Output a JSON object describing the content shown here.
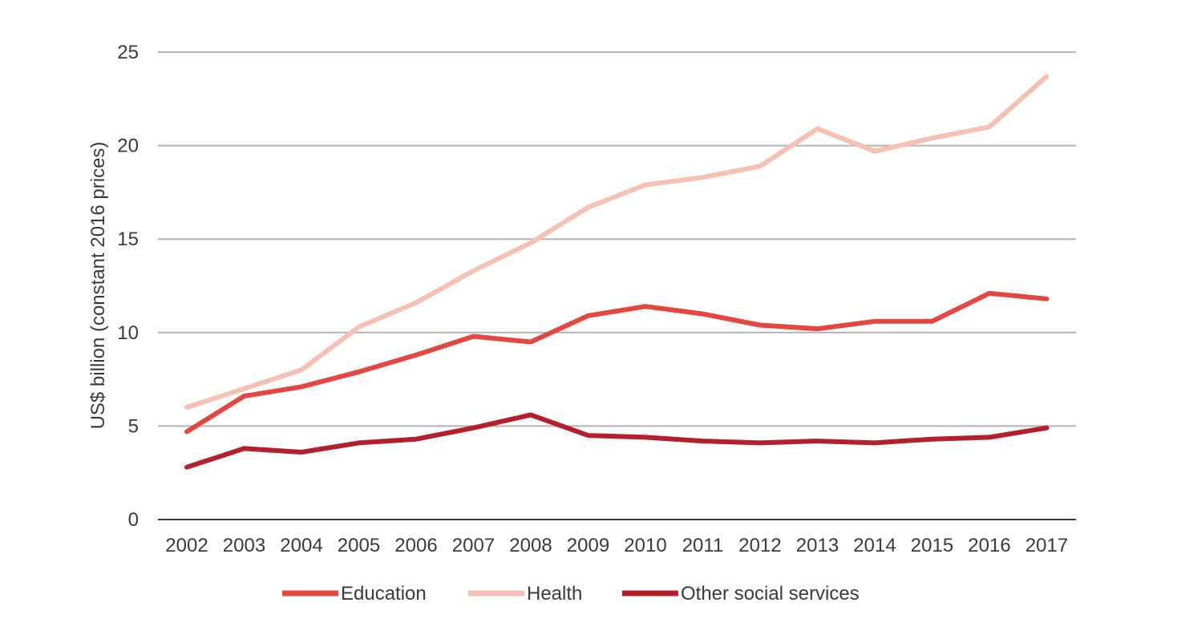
{
  "chart_data": {
    "type": "line",
    "title": "",
    "xlabel": "",
    "ylabel": "US$ billion (constant 2016 prices)",
    "x": [
      "2002",
      "2003",
      "2004",
      "2005",
      "2006",
      "2007",
      "2008",
      "2009",
      "2010",
      "2011",
      "2012",
      "2013",
      "2014",
      "2015",
      "2016",
      "2017"
    ],
    "ylim": [
      0,
      25
    ],
    "yticks": [
      "0",
      "5",
      "10",
      "15",
      "20",
      "25"
    ],
    "grid": true,
    "legend_position": "bottom",
    "series": [
      {
        "name": "Education",
        "color": "#e5463f",
        "values": [
          4.7,
          6.6,
          7.1,
          7.9,
          8.8,
          9.8,
          9.5,
          10.9,
          11.4,
          11.0,
          10.4,
          10.2,
          10.6,
          10.6,
          12.1,
          11.8
        ]
      },
      {
        "name": "Health",
        "color": "#f6c0b2",
        "values": [
          6.0,
          7.0,
          8.0,
          10.3,
          11.6,
          13.3,
          14.8,
          16.7,
          17.9,
          18.3,
          18.9,
          20.9,
          19.7,
          20.4,
          21.0,
          23.7
        ]
      },
      {
        "name": "Other social services",
        "color": "#b51f2c",
        "values": [
          2.8,
          3.8,
          3.6,
          4.1,
          4.3,
          4.9,
          5.6,
          4.5,
          4.4,
          4.2,
          4.1,
          4.2,
          4.1,
          4.3,
          4.4,
          4.9
        ]
      }
    ]
  }
}
